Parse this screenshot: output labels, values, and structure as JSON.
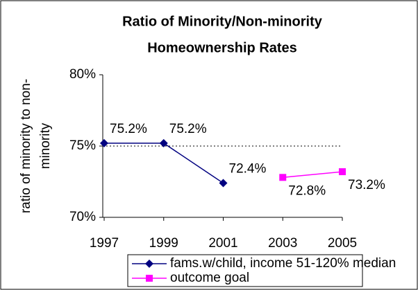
{
  "chart_data": {
    "type": "line",
    "title": [
      "Ratio of Minority/Non-minority",
      "Homeownership Rates"
    ],
    "y_label": [
      "ratio of minority to non-",
      "minority"
    ],
    "categories": [
      "1997",
      "1999",
      "2001",
      "2003",
      "2005"
    ],
    "series": [
      {
        "name": "fams.w/child, income 51-120% median",
        "color": "#000080",
        "marker": "diamond",
        "values": [
          75.2,
          75.2,
          72.4,
          null,
          null
        ],
        "value_labels": [
          "75.2%",
          "75.2%",
          "72.4%",
          null,
          null
        ]
      },
      {
        "name": "outcome goal",
        "color": "#ff00ff",
        "marker": "square",
        "values": [
          null,
          null,
          null,
          72.8,
          73.2
        ],
        "value_labels": [
          null,
          null,
          null,
          "72.8%",
          "73.2%"
        ]
      }
    ],
    "ylim": [
      70,
      80
    ],
    "yticks": [
      {
        "value": 70,
        "label": "70%"
      },
      {
        "value": 75,
        "label": "75%"
      },
      {
        "value": 80,
        "label": "80%"
      }
    ],
    "grid": true
  }
}
